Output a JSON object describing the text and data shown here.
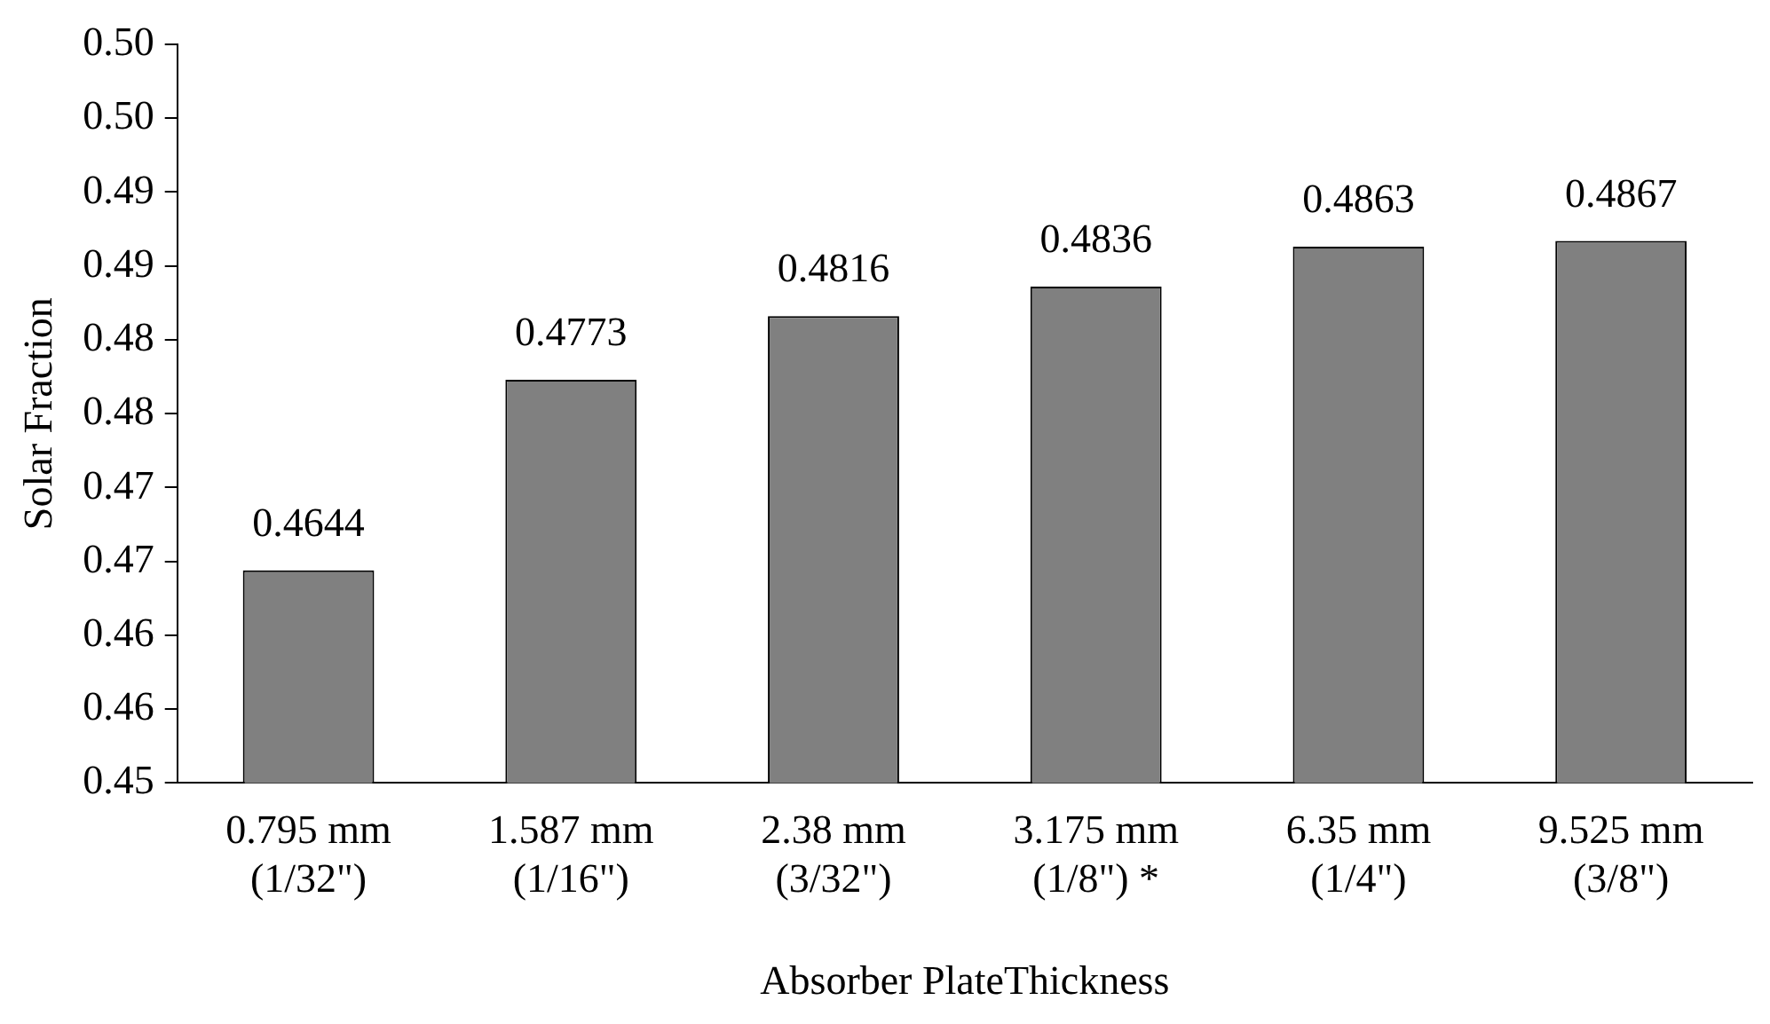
{
  "chart_data": {
    "type": "bar",
    "xlabel": "Absorber PlateThickness",
    "ylabel": "Solar Fraction",
    "categories": [
      "0.795 mm\n(1/32\")",
      "1.587 mm\n(1/16\")",
      "2.38 mm\n(3/32\")",
      "3.175 mm\n(1/8\") *",
      "6.35 mm\n(1/4\")",
      "9.525 mm\n(3/8\")"
    ],
    "values": [
      0.4644,
      0.4773,
      0.4816,
      0.4836,
      0.4863,
      0.4867
    ],
    "color": "#808080",
    "data_labels": true,
    "grid": false,
    "legend": false,
    "ylim": [
      0.45,
      0.5
    ],
    "yticks": [
      {
        "value": 0.45,
        "label": "0.45"
      },
      {
        "value": 0.455,
        "label": "0.46"
      },
      {
        "value": 0.46,
        "label": "0.46"
      },
      {
        "value": 0.465,
        "label": "0.47"
      },
      {
        "value": 0.47,
        "label": "0.47"
      },
      {
        "value": 0.475,
        "label": "0.48"
      },
      {
        "value": 0.48,
        "label": "0.48"
      },
      {
        "value": 0.485,
        "label": "0.49"
      },
      {
        "value": 0.49,
        "label": "0.49"
      },
      {
        "value": 0.495,
        "label": "0.50"
      },
      {
        "value": 0.5,
        "label": "0.50"
      }
    ]
  }
}
